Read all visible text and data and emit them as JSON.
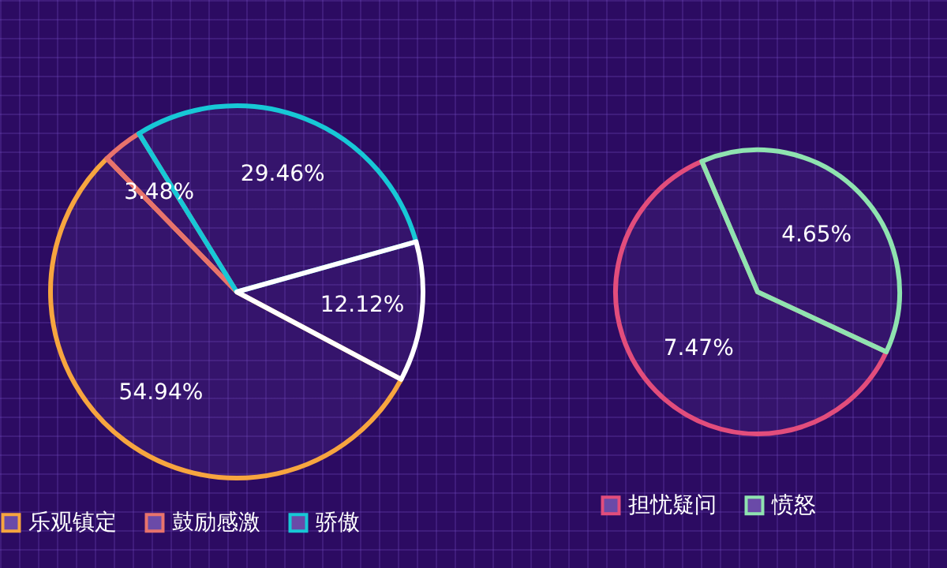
{
  "chart_data": [
    {
      "type": "pie",
      "categories": [
        "乐观镇定",
        "鼓励感激",
        "骄傲",
        null
      ],
      "values": [
        54.94,
        3.48,
        29.46,
        12.12
      ],
      "colors": [
        "#f7a53f",
        "#e8736c",
        "#17c8d6",
        "#ffffff"
      ],
      "value_labels": [
        "54.94%",
        "3.48%",
        "29.46%",
        "12.12%"
      ],
      "legend": "bottom"
    },
    {
      "type": "pie",
      "categories": [
        "担忧疑问",
        "愤怒"
      ],
      "values": [
        7.47,
        4.65
      ],
      "colors": [
        "#e24d7c",
        "#8fe3b0"
      ],
      "value_labels": [
        "7.47%",
        "4.65%"
      ],
      "legend": "bottom"
    }
  ]
}
